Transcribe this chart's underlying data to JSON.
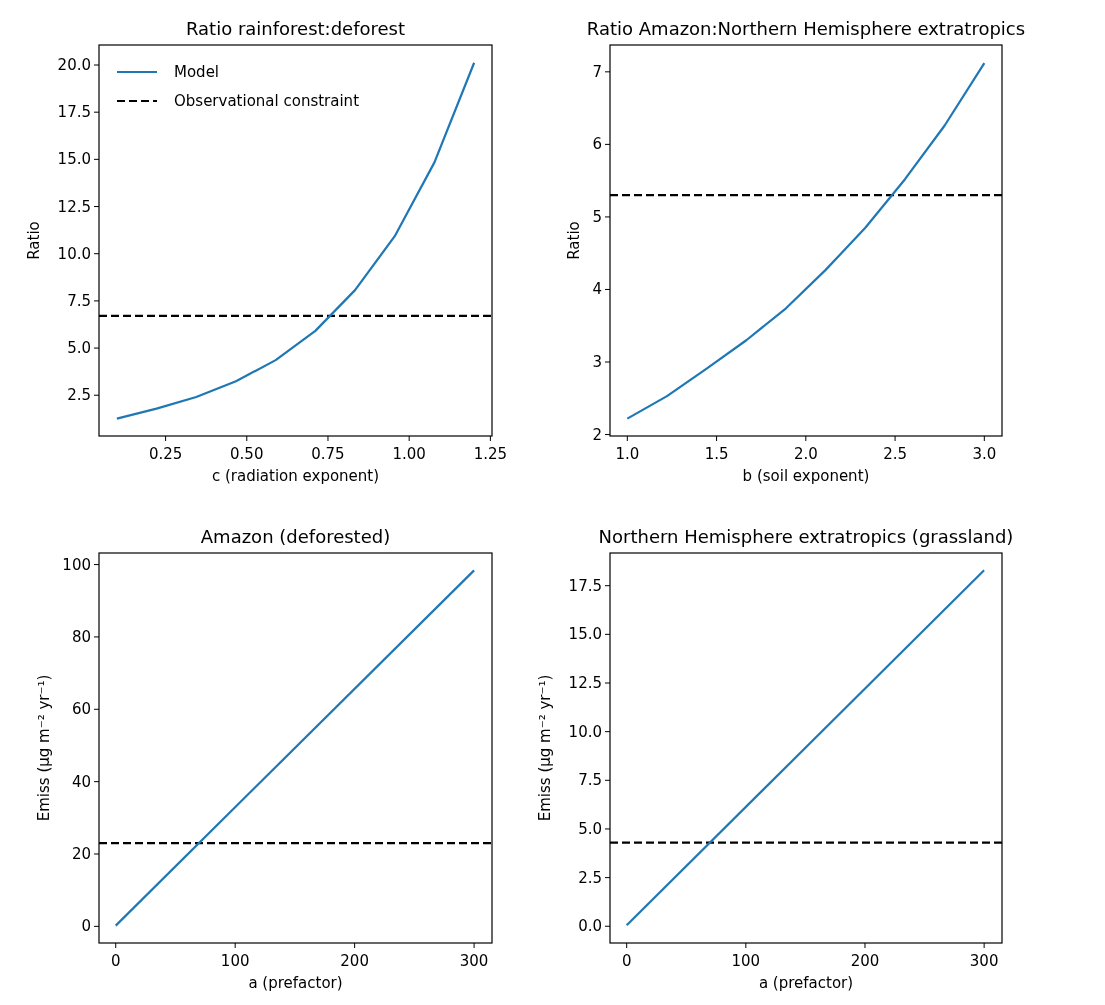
{
  "chart_data": [
    {
      "type": "line",
      "title": "Ratio rainforest:deforest",
      "xlabel": "c (radiation exponent)",
      "ylabel": "Ratio",
      "x": [
        0.1,
        0.2222,
        0.3444,
        0.4667,
        0.5889,
        0.7111,
        0.8333,
        0.9556,
        1.0778,
        1.2
      ],
      "series": [
        {
          "name": "Model",
          "color": "#1f77b4",
          "values": [
            1.26,
            1.79,
            2.41,
            3.24,
            4.36,
            5.91,
            8.07,
            10.93,
            14.84,
            20.12
          ]
        }
      ],
      "ref_lines": [
        {
          "axis": "y",
          "value": 6.71,
          "label": "Observational constraint",
          "color": "#000000",
          "line_style": "dashed"
        }
      ],
      "xlim": [
        0.045,
        1.255
      ],
      "xticks": [
        {
          "value": 0.25,
          "label": "0.25"
        },
        {
          "value": 0.5,
          "label": "0.50"
        },
        {
          "value": 0.75,
          "label": "0.75"
        },
        {
          "value": 1,
          "label": "1.00"
        },
        {
          "value": 1.25,
          "label": "1.25"
        }
      ],
      "ylim": [
        0.34,
        21.06
      ],
      "yticks": [
        {
          "value": 2.5,
          "label": "2.5"
        },
        {
          "value": 5,
          "label": "5.0"
        },
        {
          "value": 7.5,
          "label": "7.5"
        },
        {
          "value": 10,
          "label": "10.0"
        },
        {
          "value": 12.5,
          "label": "12.5"
        },
        {
          "value": 15,
          "label": "15.0"
        },
        {
          "value": 17.5,
          "label": "17.5"
        },
        {
          "value": 20,
          "label": "20.0"
        }
      ],
      "legend": "top left",
      "grid": false,
      "marker": "none",
      "line_style": "solid"
    },
    {
      "type": "line",
      "title": "Ratio Amazon:Northern Hemisphere extratropics",
      "xlabel": "b (soil exponent)",
      "ylabel": "Ratio",
      "x": [
        1.0,
        1.2222,
        1.4444,
        1.6667,
        1.8889,
        2.1111,
        2.3333,
        2.5556,
        2.7778,
        3.0
      ],
      "series": [
        {
          "color": "#1f77b4",
          "values": [
            2.22,
            2.53,
            2.91,
            3.3,
            3.74,
            4.27,
            4.85,
            5.52,
            6.26,
            7.12
          ]
        }
      ],
      "ref_lines": [
        {
          "axis": "y",
          "value": 5.3,
          "color": "#000000",
          "line_style": "dashed"
        }
      ],
      "xlim": [
        0.903,
        3.099
      ],
      "xticks": [
        {
          "value": 1,
          "label": "1.0"
        },
        {
          "value": 1.5,
          "label": "1.5"
        },
        {
          "value": 2,
          "label": "2.0"
        },
        {
          "value": 2.5,
          "label": "2.5"
        },
        {
          "value": 3,
          "label": "3.0"
        }
      ],
      "ylim": [
        1.98,
        7.37
      ],
      "yticks": [
        2,
        3,
        4,
        5,
        6,
        7
      ],
      "grid": false,
      "marker": "none",
      "line_style": "solid"
    },
    {
      "type": "line",
      "title": "Amazon (deforested)",
      "xlabel": "a (prefactor)",
      "ylabel": "Emiss (µg m⁻² yr⁻¹)",
      "x": [
        0,
        300
      ],
      "series": [
        {
          "color": "#1f77b4",
          "values": [
            0.2,
            98.4
          ]
        }
      ],
      "ref_lines": [
        {
          "axis": "y",
          "value": 23,
          "color": "#000000",
          "line_style": "dashed"
        }
      ],
      "xlim": [
        -14,
        315
      ],
      "xticks": [
        0,
        100,
        200,
        300
      ],
      "ylim": [
        -4.6,
        103.2
      ],
      "yticks": [
        0,
        20,
        40,
        60,
        80,
        100
      ],
      "grid": false,
      "marker": "none",
      "line_style": "solid"
    },
    {
      "type": "line",
      "title": "Northern Hemisphere extratropics (grassland)",
      "xlabel": "a (prefactor)",
      "ylabel": "Emiss (µg m⁻² yr⁻¹)",
      "x": [
        0,
        300
      ],
      "series": [
        {
          "color": "#1f77b4",
          "values": [
            0.05,
            18.29
          ]
        }
      ],
      "ref_lines": [
        {
          "axis": "y",
          "value": 4.3,
          "color": "#000000",
          "line_style": "dashed"
        }
      ],
      "xlim": [
        -14,
        315
      ],
      "xticks": [
        {
          "value": 0,
          "label": "0"
        },
        {
          "value": 100,
          "label": "100"
        },
        {
          "value": 200,
          "label": "200"
        },
        {
          "value": 300,
          "label": "300"
        }
      ],
      "ylim": [
        -0.86,
        19.18
      ],
      "yticks": [
        {
          "value": 0,
          "label": "0.0"
        },
        {
          "value": 2.5,
          "label": "2.5"
        },
        {
          "value": 5,
          "label": "5.0"
        },
        {
          "value": 7.5,
          "label": "7.5"
        },
        {
          "value": 10,
          "label": "10.0"
        },
        {
          "value": 12.5,
          "label": "12.5"
        },
        {
          "value": 15,
          "label": "15.0"
        },
        {
          "value": 17.5,
          "label": "17.5"
        }
      ],
      "grid": false,
      "marker": "none",
      "line_style": "solid"
    }
  ]
}
